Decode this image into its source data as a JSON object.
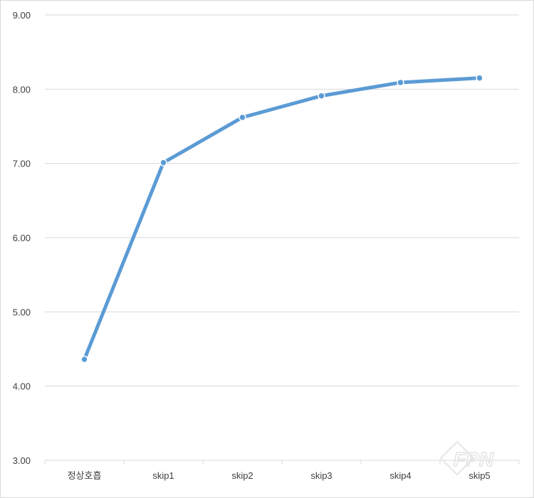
{
  "chart_data": {
    "type": "line",
    "categories": [
      "정상호흡",
      "skip1",
      "skip2",
      "skip3",
      "skip4",
      "skip5"
    ],
    "series": [
      {
        "values": [
          4.36,
          7.01,
          7.62,
          7.91,
          8.09,
          8.15
        ]
      }
    ],
    "ylim": [
      3.0,
      9.0
    ],
    "yticks": [
      "3.00",
      "4.00",
      "5.00",
      "6.00",
      "7.00",
      "8.00",
      "9.00"
    ],
    "grid": true,
    "legend": "none",
    "line_color": "#5b9bd5",
    "grid_color": "#d9d9d9"
  },
  "watermark": {
    "text": "FPN"
  }
}
